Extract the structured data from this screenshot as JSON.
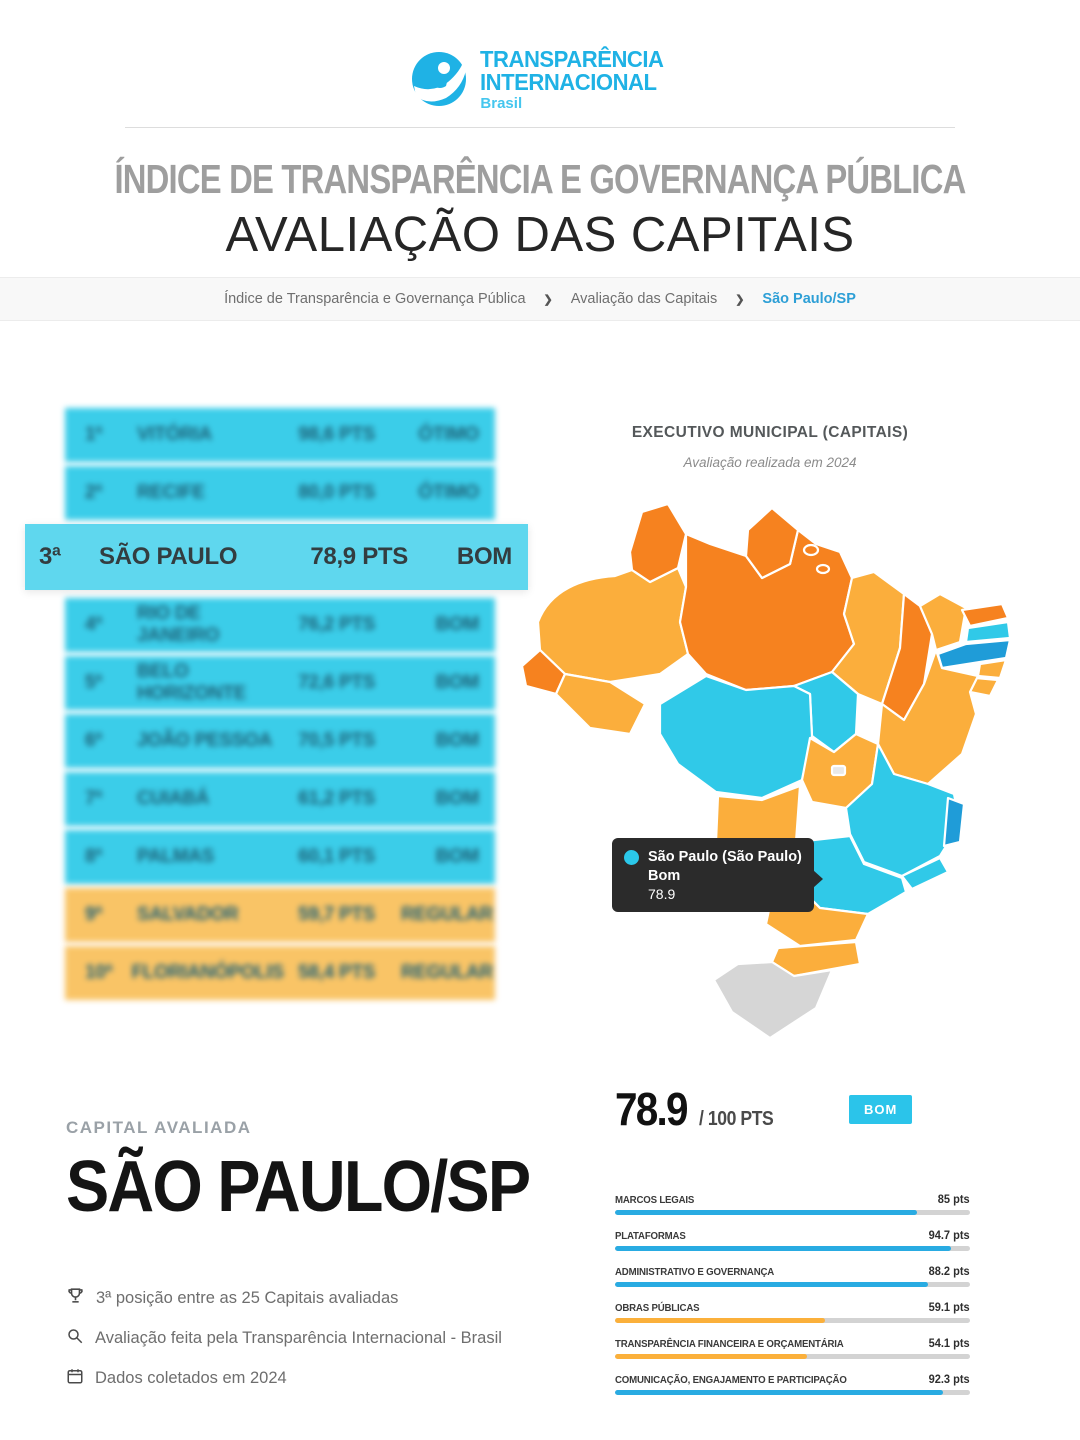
{
  "header": {
    "logo_line1": "TRANSPARÊNCIA",
    "logo_line2": "INTERNACIONAL",
    "logo_line3": "Brasil",
    "title_line1": "ÍNDICE DE TRANSPARÊNCIA E GOVERNANÇA PÚBLICA",
    "title_line2": "AVALIAÇÃO DAS CAPITAIS"
  },
  "breadcrumb": {
    "separator": "❯",
    "items": [
      {
        "label": "Índice de Transparência e Governança Pública"
      },
      {
        "label": "Avaliação das Capitais"
      },
      {
        "label": "São Paulo/SP"
      }
    ]
  },
  "ranking": {
    "palette": {
      "blue": "#3BCDE9",
      "blue_highlight": "#5FD7EE",
      "orange": "#F9C466"
    },
    "rows": [
      {
        "rank": "1ª",
        "city": "VITÓRIA",
        "score": "98,6 PTS",
        "grade": "ÓTIMO",
        "tier": "blue",
        "highlighted": false
      },
      {
        "rank": "2ª",
        "city": "RECIFE",
        "score": "80,0 PTS",
        "grade": "ÓTIMO",
        "tier": "blue",
        "highlighted": false
      },
      {
        "rank": "3ª",
        "city": "SÃO PAULO",
        "score": "78,9 PTS",
        "grade": "BOM",
        "tier": "blue_highlight",
        "highlighted": true
      },
      {
        "rank": "4ª",
        "city": "RIO DE JANEIRO",
        "score": "76,2 PTS",
        "grade": "BOM",
        "tier": "blue",
        "highlighted": false
      },
      {
        "rank": "5ª",
        "city": "BELO HORIZONTE",
        "score": "72,6 PTS",
        "grade": "BOM",
        "tier": "blue",
        "highlighted": false
      },
      {
        "rank": "6ª",
        "city": "JOÃO PESSOA",
        "score": "70,5 PTS",
        "grade": "BOM",
        "tier": "blue",
        "highlighted": false
      },
      {
        "rank": "7ª",
        "city": "CUIABÁ",
        "score": "61,2 PTS",
        "grade": "BOM",
        "tier": "blue",
        "highlighted": false
      },
      {
        "rank": "8ª",
        "city": "PALMAS",
        "score": "60,1 PTS",
        "grade": "BOM",
        "tier": "blue",
        "highlighted": false
      },
      {
        "rank": "9ª",
        "city": "SALVADOR",
        "score": "59,7 PTS",
        "grade": "REGULAR",
        "tier": "orange",
        "highlighted": false
      },
      {
        "rank": "10ª",
        "city": "FLORIANÓPOLIS",
        "score": "58,4 PTS",
        "grade": "REGULAR",
        "tier": "orange",
        "highlighted": false
      }
    ]
  },
  "map": {
    "title": "EXECUTIVO MUNICIPAL (CAPITAIS)",
    "subtitle": "Avaliação realizada em 2024",
    "tooltip": {
      "city": "São Paulo (São Paulo)",
      "grade": "Bom",
      "score": "78.9",
      "dot_color": "#2BC8EA"
    },
    "palette": {
      "orange_dark": "#F6821F",
      "orange": "#FBAE3C",
      "cyan": "#30C9E8",
      "blue": "#1F9CD8",
      "gray": "#D6D6D6",
      "gray_light": "#E9E9E9"
    },
    "states": [
      {
        "id": "RR",
        "level": "orange_dark"
      },
      {
        "id": "AP",
        "level": "orange_dark"
      },
      {
        "id": "AM",
        "level": "orange"
      },
      {
        "id": "AC",
        "level": "orange_dark"
      },
      {
        "id": "RO",
        "level": "orange"
      },
      {
        "id": "PA",
        "level": "orange_dark"
      },
      {
        "id": "MA",
        "level": "orange"
      },
      {
        "id": "TO",
        "level": "cyan"
      },
      {
        "id": "PI",
        "level": "orange_dark"
      },
      {
        "id": "CE",
        "level": "orange"
      },
      {
        "id": "RN",
        "level": "orange_dark"
      },
      {
        "id": "PB",
        "level": "cyan"
      },
      {
        "id": "PE",
        "level": "blue"
      },
      {
        "id": "AL",
        "level": "orange"
      },
      {
        "id": "SE",
        "level": "orange"
      },
      {
        "id": "BA",
        "level": "orange"
      },
      {
        "id": "MT",
        "level": "cyan"
      },
      {
        "id": "GO",
        "level": "orange"
      },
      {
        "id": "DF",
        "level": "gray_light"
      },
      {
        "id": "MG",
        "level": "cyan"
      },
      {
        "id": "ES",
        "level": "blue"
      },
      {
        "id": "RJ",
        "level": "cyan"
      },
      {
        "id": "SP",
        "level": "cyan"
      },
      {
        "id": "MS",
        "level": "orange"
      },
      {
        "id": "PR",
        "level": "orange"
      },
      {
        "id": "SC",
        "level": "orange"
      },
      {
        "id": "RS",
        "level": "gray"
      },
      {
        "id": "IL1",
        "level": "orange_dark"
      },
      {
        "id": "IL2",
        "level": "orange_dark"
      }
    ]
  },
  "capital": {
    "eyebrow": "CAPITAL AVALIADA",
    "name": "SÃO PAULO/SP",
    "facts": [
      {
        "icon": "trophy-icon",
        "text": "3ª posição entre as 25 Capitais avaliadas"
      },
      {
        "icon": "magnifier-icon",
        "text": "Avaliação feita pela Transparência Internacional - Brasil"
      },
      {
        "icon": "calendar-icon",
        "text": "Dados coletados em 2024"
      }
    ]
  },
  "score": {
    "value": "78.9",
    "denominator": "/ 100 PTS",
    "badge": "BOM",
    "badge_color": "#2BC4EA"
  },
  "chart_data": {
    "type": "bar",
    "orientation": "horizontal",
    "title": "",
    "xlabel": "",
    "ylabel": "",
    "xlim": [
      0,
      100
    ],
    "categories": [
      "MARCOS LEGAIS",
      "PLATAFORMAS",
      "ADMINISTRATIVO E GOVERNANÇA",
      "OBRAS PÚBLICAS",
      "TRANSPARÊNCIA FINANCEIRA E ORÇAMENTÁRIA",
      "COMUNICAÇÃO, ENGAJAMENTO E PARTICIPAÇÃO"
    ],
    "values": [
      85,
      94.7,
      88.2,
      59.1,
      54.1,
      92.3
    ],
    "value_labels": [
      "85 pts",
      "94.7 pts",
      "88.2 pts",
      "59.1 pts",
      "54.1 pts",
      "92.3 pts"
    ],
    "bar_colors": [
      "#29ABE2",
      "#29ABE2",
      "#29ABE2",
      "#FBB03B",
      "#FBB03B",
      "#29ABE2"
    ],
    "track_color": "#D3D3D3"
  }
}
